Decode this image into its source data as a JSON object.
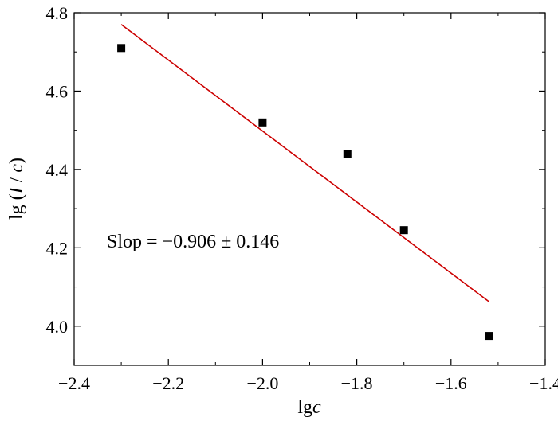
{
  "chart_data": {
    "type": "scatter",
    "xlabel": {
      "prefix": "lg",
      "var": "c"
    },
    "ylabel": {
      "prefix": "lg (",
      "var1": "I",
      "sep": " / ",
      "var2": "c",
      "suffix": ")"
    },
    "xlim": [
      -2.4,
      -1.4
    ],
    "ylim": [
      3.9,
      4.8
    ],
    "x_ticks": [
      -2.4,
      -2.2,
      -2.0,
      -1.8,
      -1.6,
      -1.4
    ],
    "x_tick_labels": [
      "−2.4",
      "−2.2",
      "−2.0",
      "−1.8",
      "−1.6",
      "−1.4"
    ],
    "y_ticks": [
      4.0,
      4.2,
      4.4,
      4.6,
      4.8
    ],
    "y_tick_labels": [
      "4.0",
      "4.2",
      "4.4",
      "4.6",
      "4.8"
    ],
    "grid": false,
    "points": [
      {
        "x": -2.3,
        "y": 4.71
      },
      {
        "x": -2.0,
        "y": 4.52
      },
      {
        "x": -1.82,
        "y": 4.44
      },
      {
        "x": -1.7,
        "y": 4.245
      },
      {
        "x": -1.52,
        "y": 3.975
      }
    ],
    "fit_line": {
      "x": [
        -2.3,
        -1.52
      ],
      "y": [
        4.77,
        4.063
      ]
    },
    "annotation": "Slop = −0.906 ± 0.146",
    "colors": {
      "points": "#000000",
      "fit_line": "#cc0000",
      "axes": "#000000"
    }
  }
}
